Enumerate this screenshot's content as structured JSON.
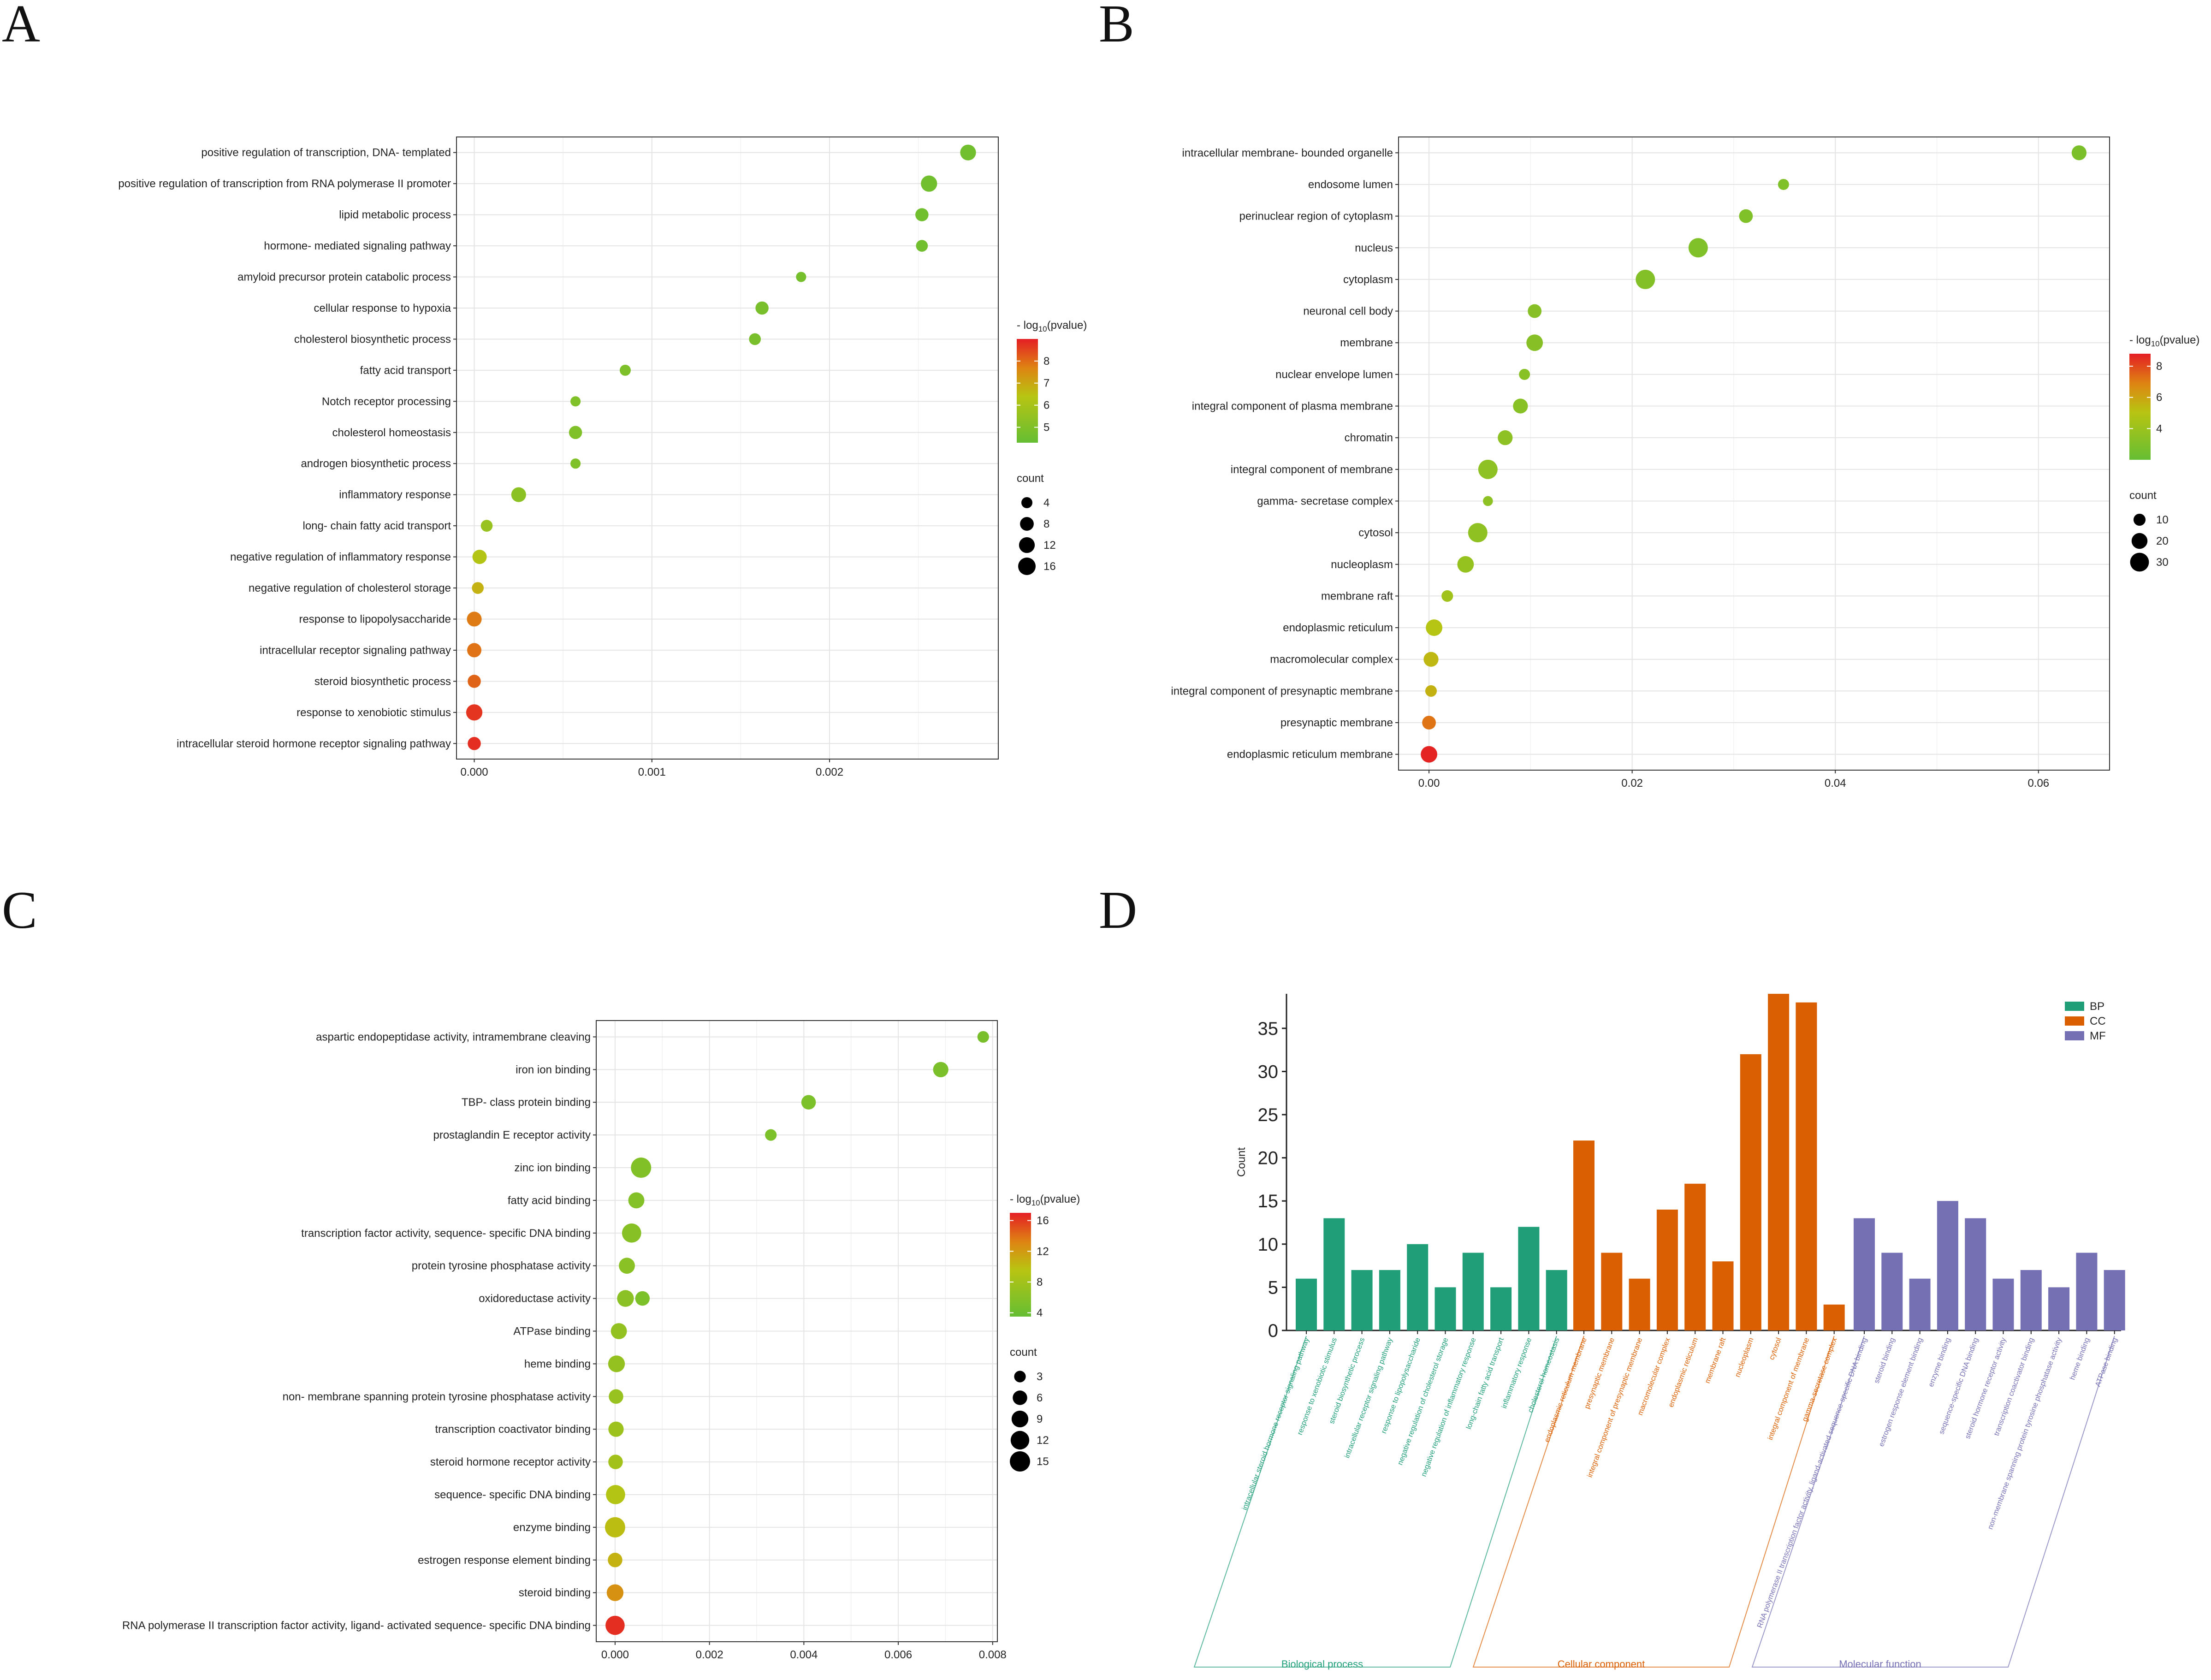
{
  "panels": {
    "A": "A",
    "B": "B",
    "C": "C",
    "D": "D"
  },
  "chart_data": [
    {
      "id": "A",
      "type": "scatter",
      "xlim": [
        -0.0001,
        0.00295
      ],
      "xticks": [
        {
          "v": 0,
          "label": "0.000"
        },
        {
          "v": 0.001,
          "label": "0.001"
        },
        {
          "v": 0.002,
          "label": "0.002"
        }
      ],
      "categories": [
        "positive regulation of transcription, DNA- templated",
        "positive regulation of transcription from RNA polymerase II promoter",
        "lipid metabolic process",
        "hormone- mediated signaling pathway",
        "amyloid precursor protein catabolic process",
        "cellular response to hypoxia",
        "cholesterol biosynthetic process",
        "fatty acid transport",
        "Notch receptor processing",
        "cholesterol homeostasis",
        "androgen biosynthetic process",
        "inflammatory response",
        "long- chain fatty acid transport",
        "negative regulation of inflammatory response",
        "negative regulation of cholesterol storage",
        "response to lipopolysaccharide",
        "intracellular receptor signaling pathway",
        "steroid biosynthetic process",
        "response to xenobiotic stimulus",
        "intracellular steroid hormone receptor signaling pathway"
      ],
      "x": [
        0.00278,
        0.00256,
        0.00252,
        0.00252,
        0.00184,
        0.00162,
        0.00158,
        0.00085,
        0.00057,
        0.00057,
        0.00057,
        0.00025,
        7e-05,
        3e-05,
        2e-05,
        0.0,
        0.0,
        0.0,
        0.0,
        0.0
      ],
      "count": [
        12,
        13,
        7,
        5,
        3,
        7,
        5,
        4,
        3,
        7,
        3,
        10,
        5,
        9,
        5,
        10,
        9,
        7,
        13,
        7
      ],
      "neglog10p": [
        4.6,
        4.6,
        4.6,
        4.6,
        4.7,
        4.8,
        4.8,
        4.9,
        5.0,
        5.0,
        5.0,
        5.3,
        5.6,
        6.3,
        6.8,
        7.8,
        7.9,
        8.1,
        8.7,
        8.8
      ],
      "color_range": [
        4.3,
        9.0
      ],
      "color_legend": {
        "title_prefix": "- log",
        "title_sub": "10",
        "title_suffix": "(pvalue)",
        "ticks": [
          5,
          6,
          7,
          8
        ]
      },
      "size_legend": {
        "title": "count",
        "values": [
          4,
          8,
          12,
          16
        ]
      }
    },
    {
      "id": "B",
      "type": "scatter",
      "xlim": [
        -0.003,
        0.067
      ],
      "xticks": [
        {
          "v": 0,
          "label": "0.00"
        },
        {
          "v": 0.02,
          "label": "0.02"
        },
        {
          "v": 0.04,
          "label": "0.04"
        },
        {
          "v": 0.06,
          "label": "0.06"
        }
      ],
      "categories": [
        "intracellular membrane- bounded organelle",
        "endosome lumen",
        "perinuclear region of cytoplasm",
        "nucleus",
        "cytoplasm",
        "neuronal cell body",
        "membrane",
        "nuclear envelope lumen",
        "integral component of plasma membrane",
        "chromatin",
        "integral component of membrane",
        "gamma- secretase complex",
        "cytosol",
        "nucleoplasm",
        "membrane raft",
        "endoplasmic reticulum",
        "macromolecular complex",
        "integral component of presynaptic membrane",
        "presynaptic membrane",
        "endoplasmic reticulum membrane"
      ],
      "x": [
        0.064,
        0.0349,
        0.0312,
        0.0265,
        0.0213,
        0.0104,
        0.0104,
        0.0094,
        0.009,
        0.0075,
        0.0058,
        0.0058,
        0.0048,
        0.0036,
        0.0018,
        0.0005,
        0.0002,
        0.0002,
        0.0,
        0.0
      ],
      "count": [
        17,
        8,
        14,
        32,
        32,
        14,
        22,
        8,
        17,
        17,
        32,
        6,
        32,
        22,
        9,
        22,
        17,
        9,
        14,
        22
      ],
      "neglog10p": [
        2.8,
        3.0,
        3.0,
        3.0,
        3.1,
        3.2,
        3.2,
        3.3,
        3.3,
        3.5,
        3.5,
        3.5,
        3.6,
        3.8,
        4.2,
        5.0,
        5.4,
        5.6,
        7.2,
        8.7
      ],
      "color_range": [
        2.0,
        8.8
      ],
      "color_legend": {
        "title_prefix": "- log",
        "title_sub": "10",
        "title_suffix": "(pvalue)",
        "ticks": [
          4,
          6,
          8
        ]
      },
      "size_legend": {
        "title": "count",
        "values": [
          10,
          20,
          30
        ]
      }
    },
    {
      "id": "C",
      "type": "scatter",
      "xlim": [
        -0.0004,
        0.0081
      ],
      "xticks": [
        {
          "v": 0,
          "label": "0.000"
        },
        {
          "v": 0.002,
          "label": "0.002"
        },
        {
          "v": 0.004,
          "label": "0.004"
        },
        {
          "v": 0.006,
          "label": "0.006"
        },
        {
          "v": 0.008,
          "label": "0.008"
        }
      ],
      "categories": [
        "aspartic endopeptidase activity, intramembrane cleaving",
        "iron ion binding",
        "TBP- class protein binding",
        "prostaglandin E receptor activity",
        "zinc ion binding",
        "fatty acid binding",
        "transcription factor activity, sequence- specific DNA binding",
        "protein tyrosine phosphatase activity",
        "oxidoreductase activity",
        "ATPase binding",
        "heme binding",
        "non- membrane spanning protein tyrosine phosphatase activity",
        "transcription coactivator binding",
        "steroid hormone receptor activity",
        "sequence- specific DNA binding",
        "enzyme binding",
        "estrogen response element binding",
        "steroid binding",
        "RNA polymerase II transcription factor activity, ligand- activated sequence- specific DNA binding"
      ],
      "x": [
        0.0078,
        0.0069,
        0.0041,
        0.0033,
        0.00055,
        0.00045,
        0.00035,
        0.00025,
        0.00022,
        8e-05,
        3e-05,
        2e-05,
        2e-05,
        1e-05,
        1e-05,
        0.0,
        0.0,
        0.0,
        0.0
      ],
      "extra_points": [
        {
          "cat_index": 8,
          "x": 0.00058,
          "count": 6,
          "neglog10p": 5.2
        }
      ],
      "count": [
        3,
        7,
        6,
        3,
        15,
        8,
        13,
        8,
        9,
        8,
        9,
        6,
        7,
        6,
        13,
        15,
        6,
        9,
        13
      ],
      "neglog10p": [
        5.0,
        5.1,
        5.2,
        5.2,
        5.6,
        5.8,
        6.0,
        6.2,
        6.3,
        6.8,
        7.0,
        7.2,
        7.6,
        8.0,
        9.2,
        10.0,
        10.6,
        12.5,
        16.4
      ],
      "color_range": [
        3.5,
        17.0
      ],
      "color_legend": {
        "title_prefix": "- log",
        "title_sub": "10",
        "title_suffix": "(pvalue)",
        "ticks": [
          4,
          8,
          12,
          16
        ]
      },
      "size_legend": {
        "title": "count",
        "values": [
          3,
          6,
          9,
          12,
          15
        ]
      }
    },
    {
      "id": "D",
      "type": "bar",
      "ylabel": "Count",
      "ylim": [
        0,
        39
      ],
      "yticks": [
        0,
        5,
        10,
        15,
        20,
        25,
        30,
        35
      ],
      "legend": [
        {
          "name": "BP",
          "color": "#1f9e78"
        },
        {
          "name": "CC",
          "color": "#d95f02"
        },
        {
          "name": "MF",
          "color": "#7570b3"
        }
      ],
      "groups": [
        {
          "name": "Biological process",
          "key": "BP",
          "color": "#1f9e78",
          "categories": [
            "intracellular steroid hormone receptor signaling pathway",
            "response to xenobiotic stimulus",
            "steroid biosynthetic process",
            "intracellular receptor signaling pathway",
            "response to lipopolysaccharide",
            "negative regulation of cholesterol storage",
            "negative regulation of inflammatory response",
            "long-chain fatty acid transport",
            "inflammatory response",
            "cholesterol homeostasis"
          ],
          "values": [
            6,
            13,
            7,
            7,
            10,
            5,
            9,
            5,
            12,
            7
          ]
        },
        {
          "name": "Cellular component",
          "key": "CC",
          "color": "#d95f02",
          "categories": [
            "endoplasmic reticulum membrane",
            "presynaptic membrane",
            "integral component of presynaptic membrane",
            "macromolecular complex",
            "endoplasmic reticulum",
            "membrane raft",
            "nucleoplasm",
            "cytosol",
            "integral component of membrane",
            "gamma-secretase complex"
          ],
          "values": [
            22,
            9,
            6,
            14,
            17,
            8,
            32,
            39,
            38,
            3
          ]
        },
        {
          "name": "Molecular function",
          "key": "MF",
          "color": "#7570b3",
          "categories": [
            "RNA polymerase II transcription factor activity, ligand-activated sequence-specific DNA binding",
            "steroid binding",
            "estrogen response element binding",
            "enzyme binding",
            "sequence-specific DNA binding",
            "steroid hormone receptor activity",
            "transcription coactivator binding",
            "non-membrane spanning protein tyrosine phosphatase activity",
            "heme binding",
            "ATPase binding"
          ],
          "values": [
            13,
            9,
            6,
            15,
            13,
            6,
            7,
            5,
            9,
            7
          ]
        }
      ]
    }
  ]
}
